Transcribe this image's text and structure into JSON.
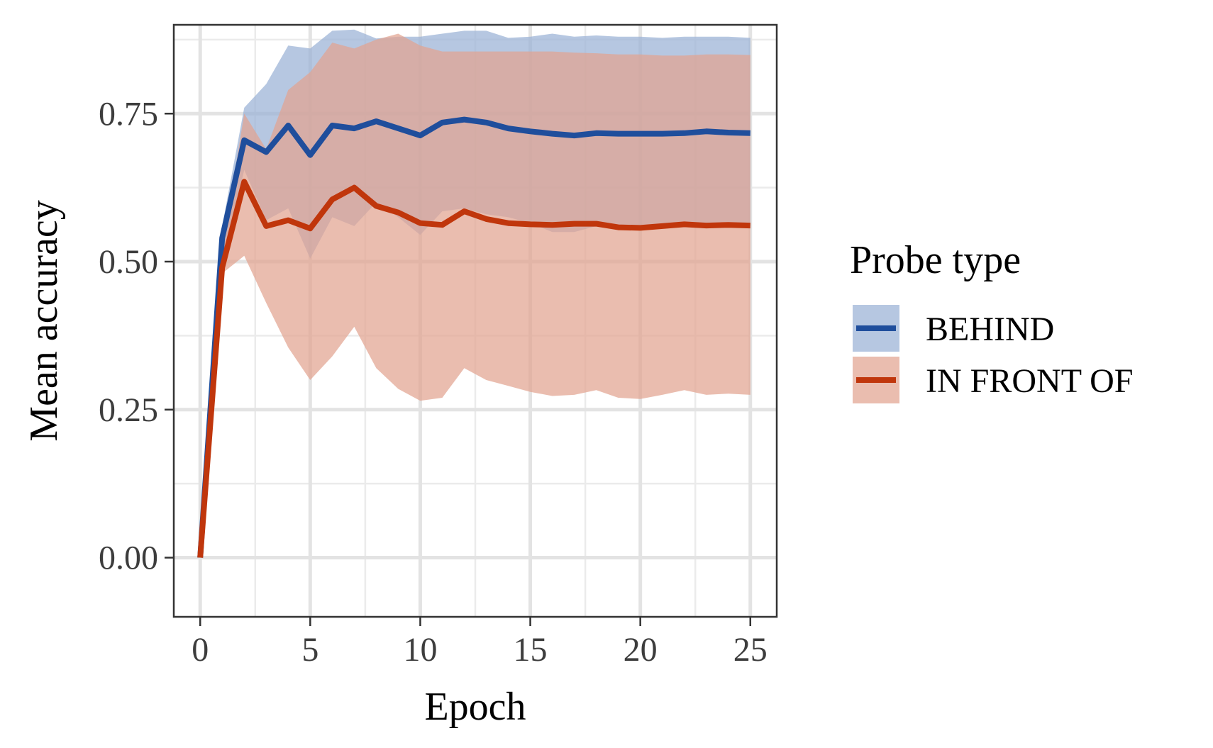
{
  "chart_data": {
    "type": "line",
    "xlabel": "Epoch",
    "ylabel": "Mean accuracy",
    "xlim": [
      -1.2,
      26.2
    ],
    "ylim": [
      -0.1,
      0.9
    ],
    "x_ticks": [
      0,
      5,
      10,
      15,
      20,
      25
    ],
    "x_tick_labels": [
      "0",
      "5",
      "10",
      "15",
      "20",
      "25"
    ],
    "y_ticks": [
      0.0,
      0.25,
      0.5,
      0.75
    ],
    "y_tick_labels": [
      "0.00",
      "0.25",
      "0.50",
      "0.75"
    ],
    "grid": true,
    "legend": {
      "title": "Probe type",
      "position": "right"
    },
    "x": [
      0,
      1,
      2,
      3,
      4,
      5,
      6,
      7,
      8,
      9,
      10,
      11,
      12,
      13,
      14,
      15,
      16,
      17,
      18,
      19,
      20,
      21,
      22,
      23,
      24,
      25
    ],
    "series": [
      {
        "name": "BEHIND",
        "color": "#1f4e9c",
        "band_color": "#9ab2d6",
        "values": [
          0.0,
          0.54,
          0.705,
          0.685,
          0.73,
          0.68,
          0.73,
          0.725,
          0.737,
          0.725,
          0.713,
          0.735,
          0.74,
          0.735,
          0.725,
          0.72,
          0.716,
          0.713,
          0.717,
          0.716,
          0.716,
          0.716,
          0.717,
          0.72,
          0.718,
          0.717
        ],
        "upper": [
          0.0,
          0.56,
          0.76,
          0.8,
          0.865,
          0.86,
          0.89,
          0.892,
          0.877,
          0.88,
          0.88,
          0.885,
          0.89,
          0.89,
          0.878,
          0.88,
          0.885,
          0.88,
          0.882,
          0.88,
          0.88,
          0.878,
          0.88,
          0.88,
          0.88,
          0.878
        ],
        "lower": [
          0.0,
          0.49,
          0.655,
          0.57,
          0.59,
          0.505,
          0.575,
          0.56,
          0.6,
          0.575,
          0.545,
          0.585,
          0.59,
          0.58,
          0.575,
          0.565,
          0.55,
          0.55,
          0.56,
          0.56,
          0.56,
          0.56,
          0.56,
          0.56,
          0.56,
          0.56
        ]
      },
      {
        "name": "IN FRONT OF",
        "color": "#c0360c",
        "band_color": "#e2a390",
        "values": [
          0.0,
          0.49,
          0.635,
          0.56,
          0.57,
          0.556,
          0.605,
          0.625,
          0.594,
          0.583,
          0.565,
          0.562,
          0.585,
          0.572,
          0.565,
          0.563,
          0.562,
          0.564,
          0.564,
          0.558,
          0.557,
          0.56,
          0.563,
          0.561,
          0.562,
          0.561
        ],
        "upper": [
          0.0,
          0.52,
          0.75,
          0.69,
          0.79,
          0.82,
          0.87,
          0.86,
          0.875,
          0.885,
          0.865,
          0.855,
          0.855,
          0.855,
          0.855,
          0.855,
          0.855,
          0.853,
          0.852,
          0.85,
          0.85,
          0.848,
          0.848,
          0.85,
          0.85,
          0.849
        ],
        "lower": [
          0.0,
          0.48,
          0.51,
          0.43,
          0.355,
          0.3,
          0.34,
          0.39,
          0.32,
          0.285,
          0.265,
          0.27,
          0.32,
          0.3,
          0.29,
          0.28,
          0.273,
          0.275,
          0.283,
          0.27,
          0.268,
          0.275,
          0.283,
          0.275,
          0.277,
          0.275
        ]
      }
    ]
  }
}
